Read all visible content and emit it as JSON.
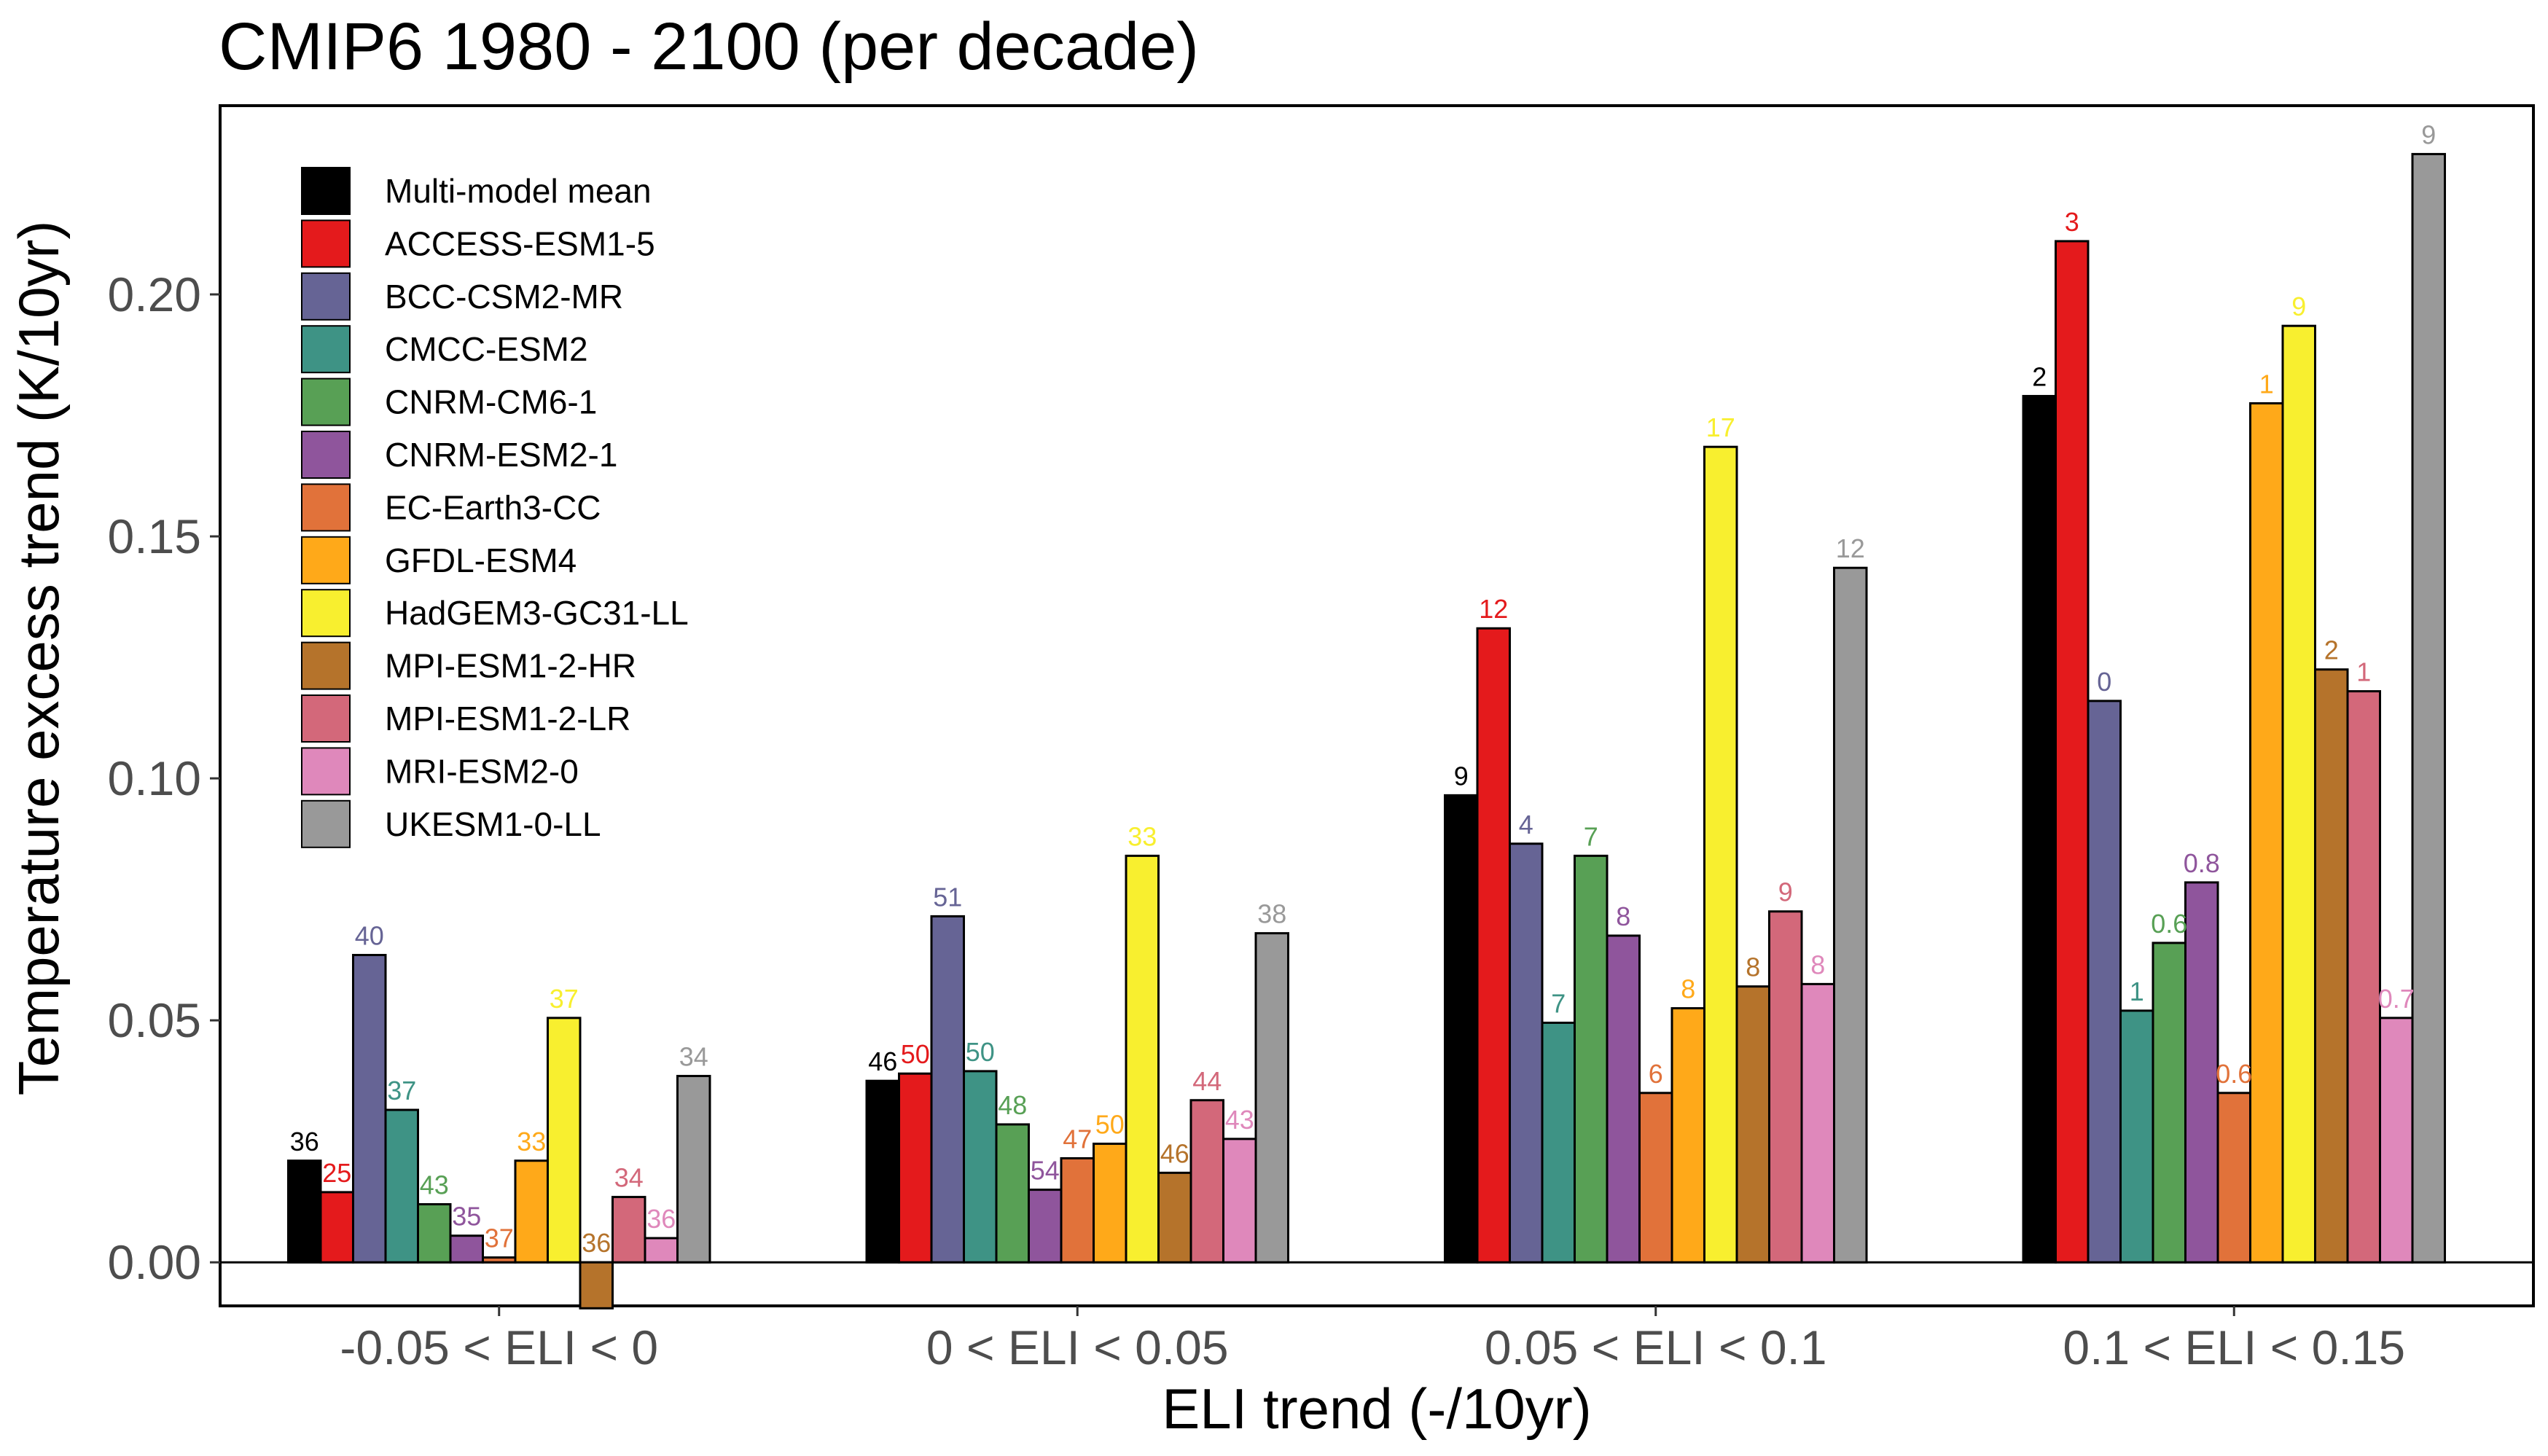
{
  "chart_data": {
    "type": "bar",
    "title": "CMIP6 1980 - 2100 (per decade)",
    "xlabel": "ELI trend (-/10yr)",
    "ylabel": "Temperature excess trend (K/10yr)",
    "ylim": [
      -0.009,
      0.239
    ],
    "yticks": [
      "0.00",
      "0.05",
      "0.10",
      "0.15",
      "0.20"
    ],
    "ytick_values": [
      0,
      0.05,
      0.1,
      0.15,
      0.2
    ],
    "categories": [
      "-0.05 < ELI < 0",
      "0 < ELI < 0.05",
      "0.05 < ELI < 0.1",
      "0.1 < ELI < 0.15"
    ],
    "legend_position": "top-left",
    "series": [
      {
        "name": "Multi-model mean",
        "color": "#000000",
        "label_color": "#000000",
        "values": [
          0.021,
          0.0375,
          0.0965,
          0.179
        ],
        "labels": [
          "36",
          "46",
          "9",
          "2"
        ]
      },
      {
        "name": "ACCESS-ESM1-5",
        "color": "#E41A1C",
        "label_color": "#E41A1C",
        "values": [
          0.0145,
          0.039,
          0.131,
          0.211
        ],
        "labels": [
          "25",
          "50",
          "12",
          "3"
        ]
      },
      {
        "name": "BCC-CSM2-MR",
        "color": "#666495",
        "label_color": "#666495",
        "values": [
          0.0635,
          0.0715,
          0.0865,
          0.116
        ],
        "labels": [
          "40",
          "51",
          "4",
          "0"
        ]
      },
      {
        "name": "CMCC-ESM2",
        "color": "#3E9385",
        "label_color": "#3E9385",
        "values": [
          0.0315,
          0.0395,
          0.0495,
          0.052
        ],
        "labels": [
          "37",
          "50",
          "7",
          "1"
        ]
      },
      {
        "name": "CNRM-CM6-1",
        "color": "#58A055",
        "label_color": "#58A055",
        "values": [
          0.012,
          0.0285,
          0.084,
          0.066
        ],
        "labels": [
          "43",
          "48",
          "7",
          "0.6"
        ]
      },
      {
        "name": "CNRM-ESM2-1",
        "color": "#8F559C",
        "label_color": "#8F559C",
        "values": [
          0.0055,
          0.015,
          0.0675,
          0.0785
        ],
        "labels": [
          "35",
          "54",
          "8",
          "0.8"
        ]
      },
      {
        "name": "EC-Earth3-CC",
        "color": "#E1723A",
        "label_color": "#E1723A",
        "values": [
          0.001,
          0.0215,
          0.035,
          0.035
        ],
        "labels": [
          "37",
          "47",
          "6",
          "0.6"
        ]
      },
      {
        "name": "GFDL-ESM4",
        "color": "#FFA919",
        "label_color": "#FFA919",
        "values": [
          0.021,
          0.0245,
          0.0525,
          0.1775
        ],
        "labels": [
          "33",
          "50",
          "8",
          "1"
        ]
      },
      {
        "name": "HadGEM3-GC31-LL",
        "color": "#F8EF2F",
        "label_color": "#F8EF2F",
        "values": [
          0.0505,
          0.084,
          0.1685,
          0.1935
        ],
        "labels": [
          "37",
          "33",
          "17",
          "9"
        ]
      },
      {
        "name": "MPI-ESM1-2-HR",
        "color": "#B5732B",
        "label_color": "#B5732B",
        "values": [
          -0.0095,
          0.0185,
          0.057,
          0.1225
        ],
        "labels": [
          "36",
          "46",
          "8",
          "2"
        ]
      },
      {
        "name": "MPI-ESM1-2-LR",
        "color": "#D3687A",
        "label_color": "#D3687A",
        "values": [
          0.0135,
          0.0335,
          0.0725,
          0.118
        ],
        "labels": [
          "34",
          "44",
          "9",
          "1"
        ]
      },
      {
        "name": "MRI-ESM2-0",
        "color": "#DF88BB",
        "label_color": "#DF88BB",
        "values": [
          0.005,
          0.0255,
          0.0575,
          0.0505
        ],
        "labels": [
          "36",
          "43",
          "8",
          "0.7"
        ]
      },
      {
        "name": "UKESM1-0-LL",
        "color": "#999999",
        "label_color": "#999999",
        "values": [
          0.0385,
          0.068,
          0.1435,
          0.229
        ],
        "labels": [
          "34",
          "38",
          "12",
          "9"
        ]
      }
    ]
  }
}
